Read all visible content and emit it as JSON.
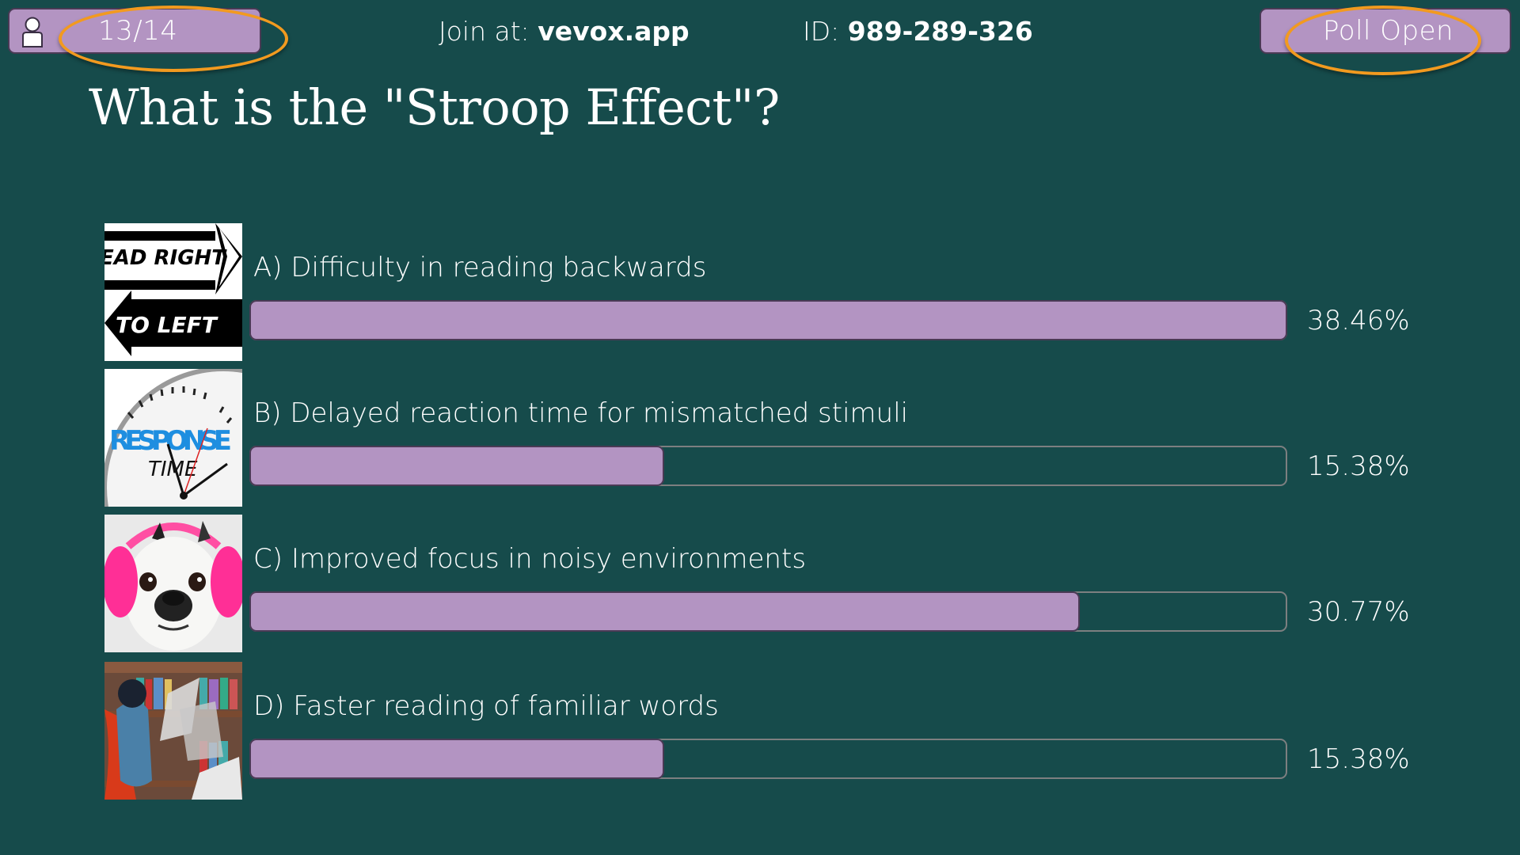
{
  "header": {
    "participants": "13/14",
    "join_prefix": "Join at: ",
    "join_url": "vevox.app",
    "id_prefix": "ID: ",
    "meeting_id": "989-289-326",
    "poll_status": "Poll Open"
  },
  "colors": {
    "background": "#164B4B",
    "pill": "#B394C2",
    "pill_border": "#4A3A55",
    "annotation": "#F29A1F",
    "track_border": "#7D7F80"
  },
  "question": {
    "title": "What is the \"Stroop Effect\"?"
  },
  "options": [
    {
      "label": "A) Difficulty in reading backwards",
      "percent": "38.46%",
      "value": 38.46,
      "image": "read-right-to-left-arrows"
    },
    {
      "label": "B) Delayed reaction time for mismatched stimuli",
      "percent": "15.38%",
      "value": 15.38,
      "image": "response-time-clock"
    },
    {
      "label": "C) Improved focus in noisy environments",
      "percent": "30.77%",
      "value": 30.77,
      "image": "dog-with-pink-earmuffs"
    },
    {
      "label": "D) Faster reading of familiar words",
      "percent": "15.38%",
      "value": 15.38,
      "image": "superhero-speed-reading"
    }
  ],
  "chart_data": {
    "type": "bar",
    "orientation": "horizontal",
    "title": "What is the \"Stroop Effect\"?",
    "categories": [
      "A) Difficulty in reading backwards",
      "B) Delayed reaction time for mismatched stimuli",
      "C) Improved focus in noisy environments",
      "D) Faster reading of familiar words"
    ],
    "values": [
      38.46,
      15.38,
      30.77,
      15.38
    ],
    "unit": "%",
    "xlabel": "",
    "ylabel": "",
    "bar_scale": "relative to maximum value"
  }
}
